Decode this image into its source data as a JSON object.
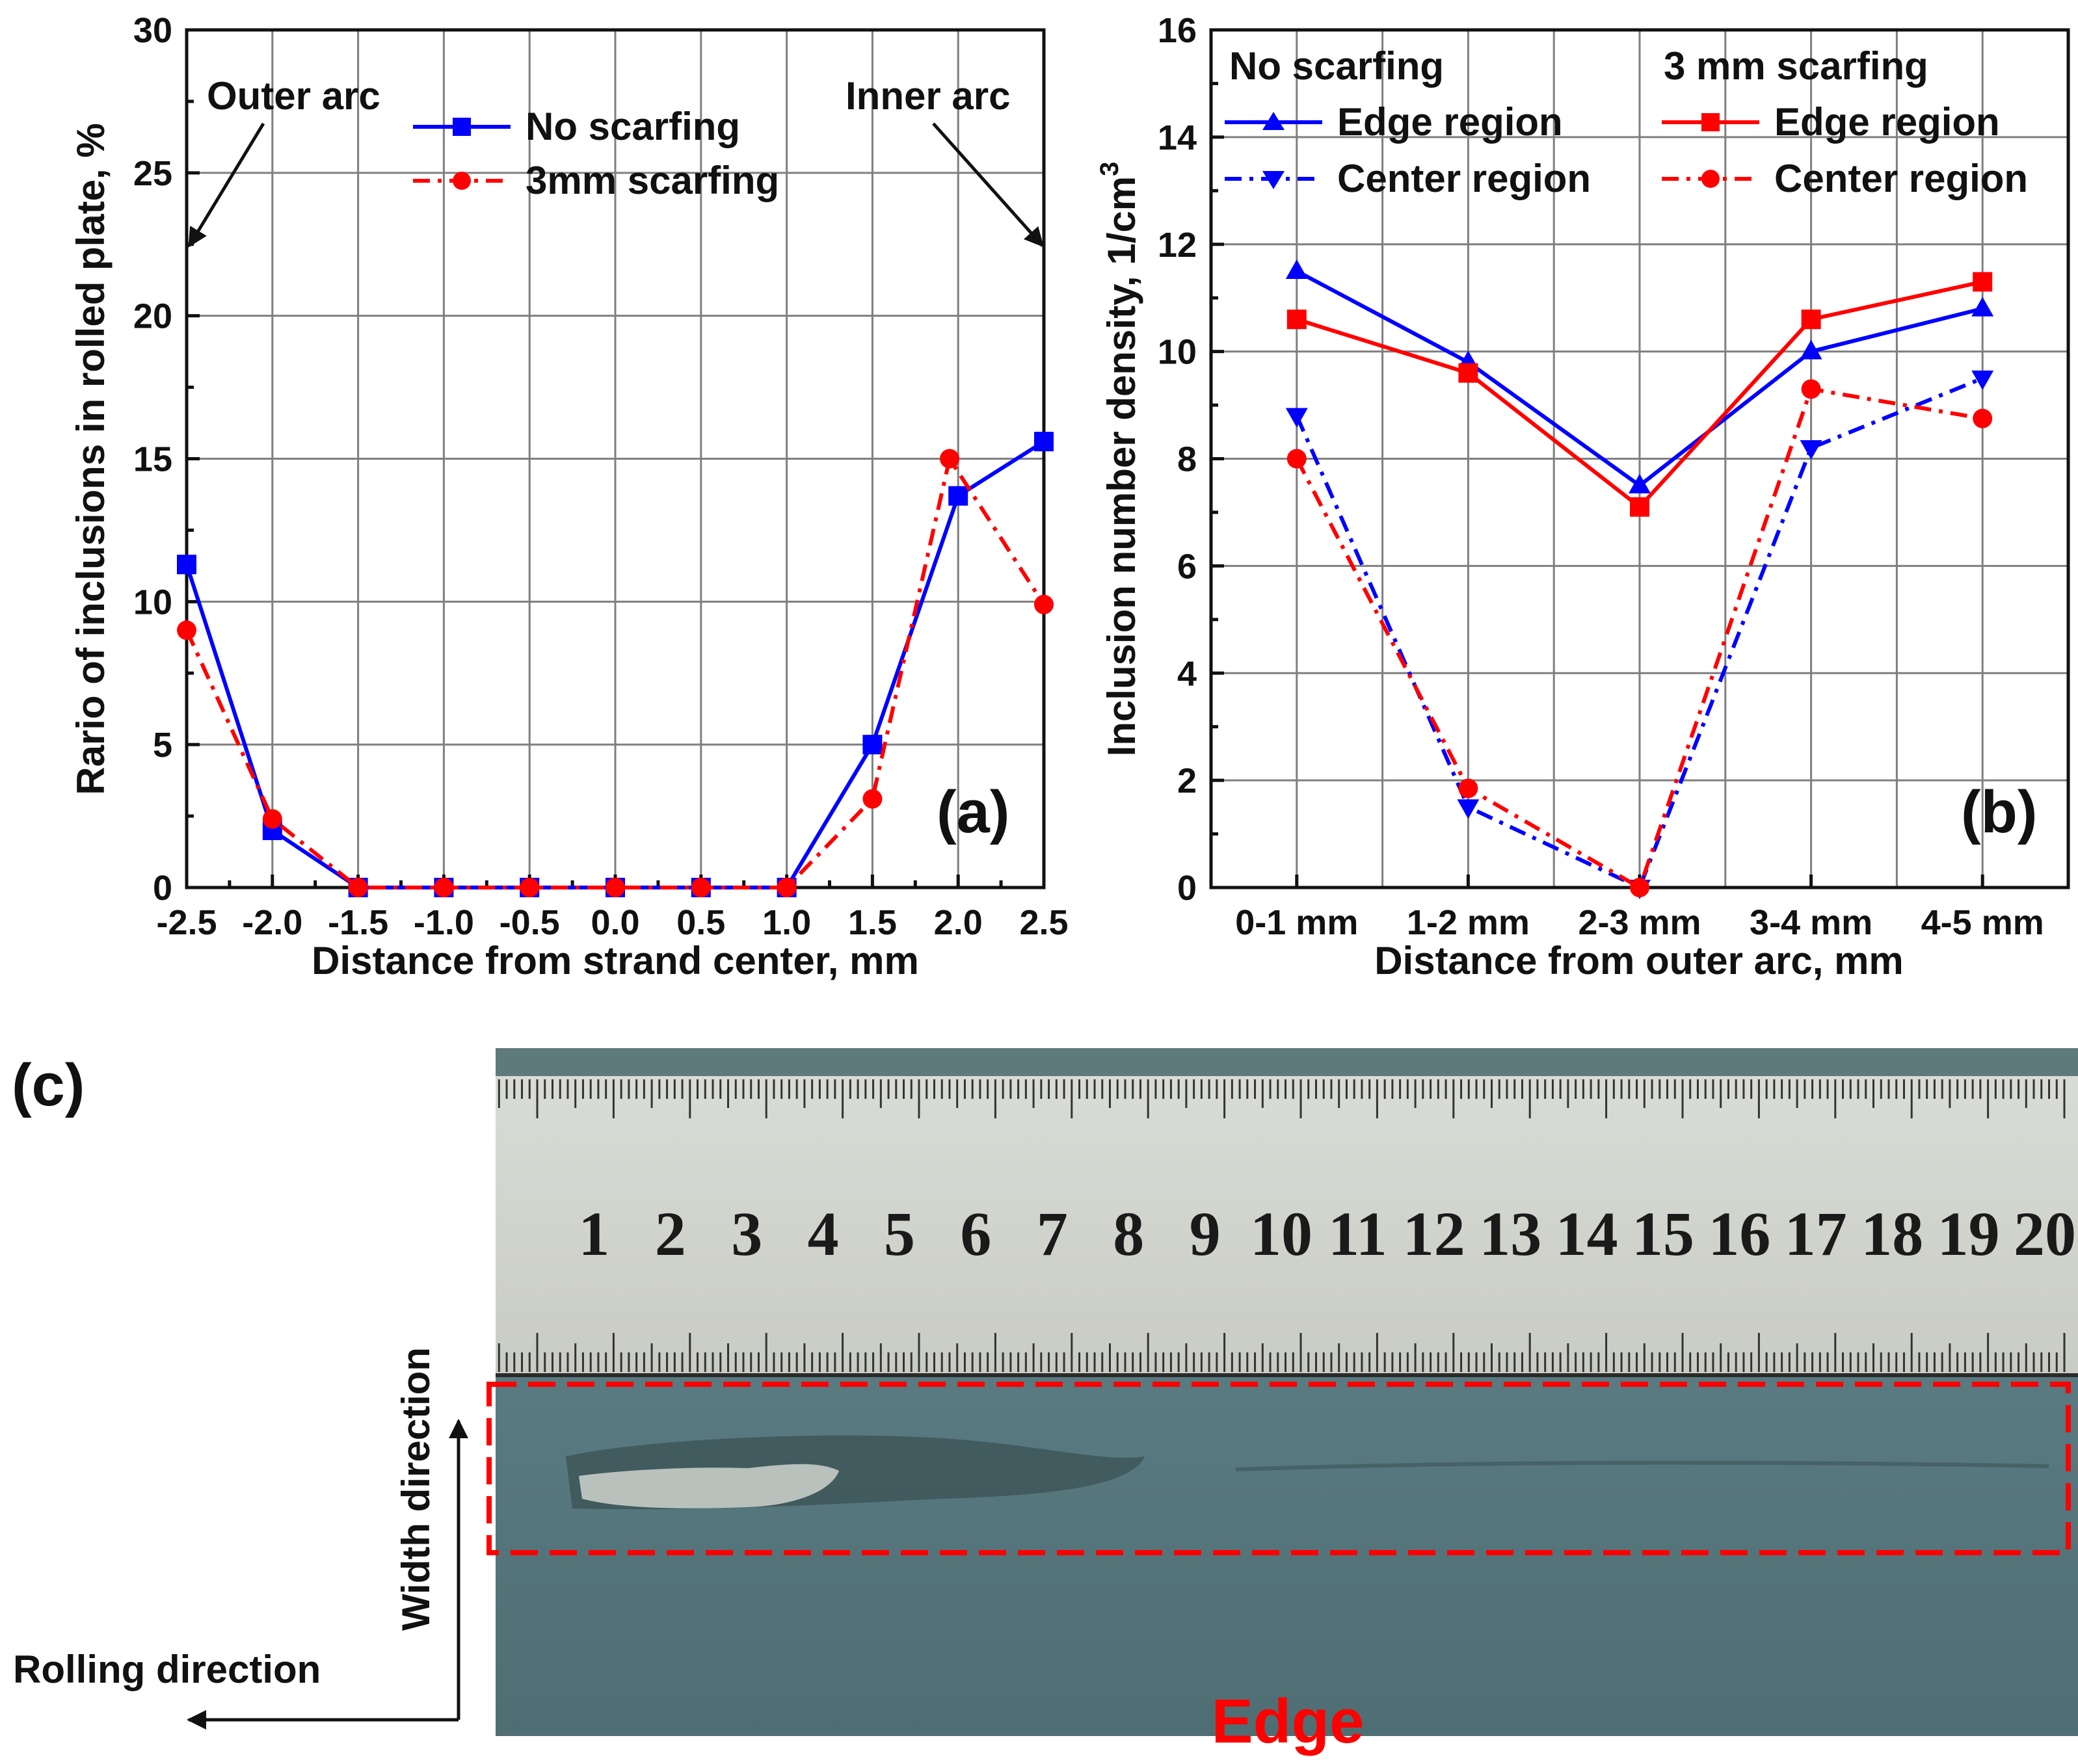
{
  "chart_data": [
    {
      "type": "line",
      "panel_label": "(a)",
      "xlabel": "Distance from strand center, mm",
      "ylabel": "Rario of inclusions in rolled plate, %",
      "xlim": [
        -2.5,
        2.5
      ],
      "ylim": [
        0,
        30
      ],
      "x_ticks": [
        "-2.5",
        "-2.0",
        "-1.5",
        "-1.0",
        "-0.5",
        "0.0",
        "0.5",
        "1.0",
        "1.5",
        "2.0",
        "2.5"
      ],
      "y_ticks": [
        "0",
        "5",
        "10",
        "15",
        "20",
        "25",
        "30"
      ],
      "grid": true,
      "legend_position": "top-center",
      "series": [
        {
          "name": "No scarfing",
          "color": "#0000ff",
          "marker": "square",
          "style": "solid",
          "x": [
            -2.5,
            -2.0,
            -1.5,
            -1.0,
            -0.5,
            0.0,
            0.5,
            1.0,
            1.5,
            2.0,
            2.5
          ],
          "values": [
            11.3,
            2.0,
            0,
            0,
            0,
            0,
            0,
            0,
            5.0,
            13.7,
            15.6
          ]
        },
        {
          "name": "3mm scarfing",
          "color": "#ff0000",
          "marker": "circle",
          "style": "dashdot",
          "x": [
            -2.5,
            -2.0,
            -1.5,
            -1.0,
            -0.5,
            0.0,
            0.5,
            1.0,
            1.5,
            1.95,
            2.5
          ],
          "values": [
            9.0,
            2.4,
            0,
            0,
            0,
            0,
            0,
            0,
            3.1,
            15.0,
            9.9
          ]
        }
      ],
      "annotations": [
        {
          "text": "Outer arc",
          "points_to_x": -2.5,
          "points_to_y": 22.7
        },
        {
          "text": "Inner arc",
          "points_to_x": 2.5,
          "points_to_y": 22.7
        }
      ]
    },
    {
      "type": "line",
      "panel_label": "(b)",
      "xlabel": "Distance from outer arc, mm",
      "ylabel": "Inclusion number density, 1/cm",
      "ylabel_superscript": "3",
      "categories": [
        "0-1 mm",
        "1-2 mm",
        "2-3 mm",
        "3-4 mm",
        "4-5 mm"
      ],
      "ylim": [
        0,
        16
      ],
      "y_ticks": [
        "0",
        "2",
        "4",
        "6",
        "8",
        "10",
        "12",
        "14",
        "16"
      ],
      "grid": true,
      "legend_position": "top",
      "legend_groups": [
        "No scarfing",
        "3 mm scarfing"
      ],
      "series": [
        {
          "name": "Edge region",
          "group": "No scarfing",
          "color": "#0000ff",
          "marker": "triangle-up",
          "style": "solid",
          "values": [
            11.5,
            9.8,
            7.5,
            10.0,
            10.8
          ]
        },
        {
          "name": "Center region",
          "group": "No scarfing",
          "color": "#0000ff",
          "marker": "triangle-down",
          "style": "dashdot",
          "values": [
            8.8,
            1.5,
            0.0,
            8.2,
            9.5
          ]
        },
        {
          "name": "Edge region",
          "group": "3 mm scarfing",
          "color": "#ff0000",
          "marker": "square",
          "style": "solid",
          "values": [
            10.6,
            9.6,
            7.1,
            10.6,
            11.3
          ]
        },
        {
          "name": "Center region",
          "group": "3 mm scarfing",
          "color": "#ff0000",
          "marker": "circle",
          "style": "dashdot",
          "values": [
            8.0,
            1.85,
            0.0,
            9.3,
            8.75
          ]
        }
      ]
    }
  ],
  "photo": {
    "panel_label": "(c)",
    "ruler_numbers": [
      "1",
      "2",
      "3",
      "4",
      "5",
      "6",
      "7",
      "8",
      "9",
      "10",
      "11",
      "12",
      "13",
      "14",
      "15",
      "16",
      "17",
      "18",
      "19",
      "20"
    ],
    "width_direction_label": "Width direction",
    "rolling_direction_label": "Rolling direction",
    "edge_label": "Edge"
  }
}
